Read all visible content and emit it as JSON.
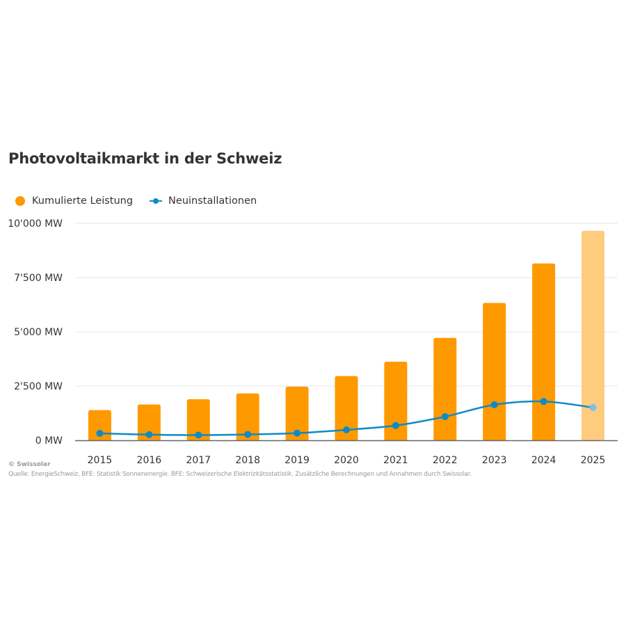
{
  "chart_data": {
    "type": "bar",
    "title": "Photovoltaikmarkt in der Schweiz",
    "xlabel": "",
    "ylabel": "",
    "ylim": [
      0,
      10000
    ],
    "grid": true,
    "legend_position": "top-left",
    "categories": [
      "2015",
      "2016",
      "2017",
      "2018",
      "2019",
      "2020",
      "2021",
      "2022",
      "2023",
      "2024",
      "2025"
    ],
    "y_ticks": [
      {
        "value": 0,
        "label": "0 MW"
      },
      {
        "value": 2500,
        "label": "2'500 MW"
      },
      {
        "value": 5000,
        "label": "5'000 MW"
      },
      {
        "value": 7500,
        "label": "7'500 MW"
      },
      {
        "value": 10000,
        "label": "10'000 MW"
      }
    ],
    "series": [
      {
        "name": "Kumulierte Leistung",
        "type": "bar",
        "color": "#FF9900",
        "highlight_last_color": "#FFCB7F",
        "values": [
          1390,
          1650,
          1890,
          2160,
          2470,
          2960,
          3620,
          4720,
          6330,
          8150,
          9650
        ]
      },
      {
        "name": "Neuinstallationen",
        "type": "line",
        "color": "#0E8AC8",
        "highlight_last_color": "#7CC0E8",
        "values": [
          320,
          260,
          240,
          270,
          330,
          480,
          680,
          1090,
          1640,
          1790,
          1510
        ]
      }
    ]
  },
  "legend": {
    "items": [
      {
        "label": "Kumulierte Leistung",
        "color": "#FF9900"
      },
      {
        "label": "Neuinstallationen",
        "color": "#0E8AC8"
      }
    ]
  },
  "footer": {
    "copyright": "© Swissolar",
    "source": "Quelle: EnergieSchweiz, BFE: Statistik Sonnenenergie. BFE: Schweizerische Elektrizitätsstatistik. Zusätzliche Berechnungen und Annahmen durch Swissolar."
  }
}
